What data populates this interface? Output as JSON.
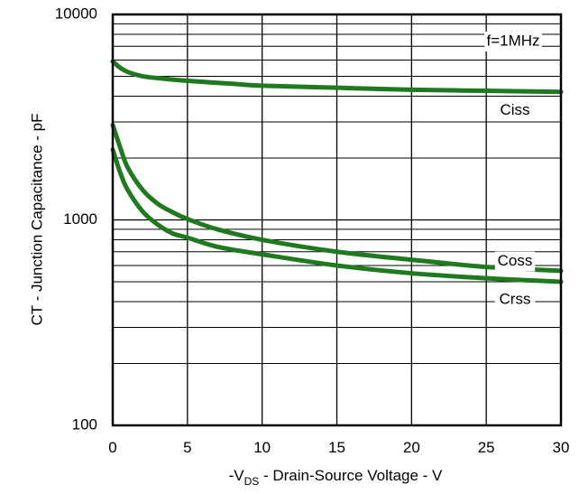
{
  "chart_data": {
    "type": "line",
    "xlabel_parts": [
      "-V",
      "DS",
      " - Drain-Source Voltage - V"
    ],
    "ylabel": "CT - Junction Capacitance - pF",
    "annotation": "f=1MHz",
    "xlim": [
      0,
      30
    ],
    "ylim": [
      100,
      10000
    ],
    "yscale": "log",
    "grid": true,
    "x_ticks": [
      0,
      5,
      10,
      15,
      20,
      25,
      30
    ],
    "y_ticks": [
      100,
      1000,
      10000
    ],
    "x_tick_labels": [
      "0",
      "5",
      "10",
      "15",
      "20",
      "25",
      "30"
    ],
    "y_tick_labels": [
      "100",
      "1000",
      "10000"
    ],
    "series_color": "#1f7a1f",
    "series": [
      {
        "name": "Ciss",
        "x": [
          0,
          0.5,
          1,
          2,
          3,
          5,
          8,
          10,
          15,
          20,
          25,
          30
        ],
        "y": [
          5900,
          5500,
          5250,
          5000,
          4900,
          4750,
          4600,
          4500,
          4400,
          4300,
          4250,
          4200
        ]
      },
      {
        "name": "Coss",
        "x": [
          0,
          0.5,
          1,
          2,
          3,
          4,
          5,
          7,
          10,
          15,
          20,
          25,
          30
        ],
        "y": [
          2900,
          2250,
          1800,
          1400,
          1200,
          1090,
          1010,
          900,
          800,
          700,
          640,
          590,
          565
        ]
      },
      {
        "name": "Crss",
        "x": [
          0,
          0.5,
          1,
          2,
          3,
          4,
          5,
          7,
          10,
          15,
          20,
          25,
          30
        ],
        "y": [
          2200,
          1700,
          1400,
          1100,
          950,
          860,
          820,
          740,
          680,
          600,
          550,
          520,
          500
        ]
      }
    ]
  }
}
